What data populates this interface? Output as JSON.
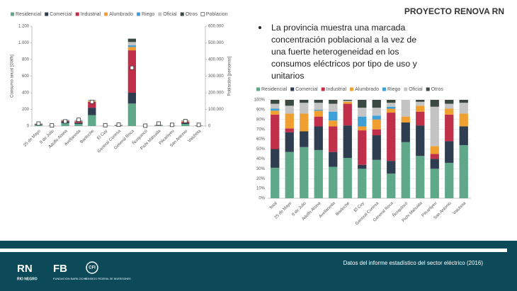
{
  "header": {
    "title": "PROYECTO RENOVA RN"
  },
  "bullet": "La provincia muestra una marcada concentración poblacional a la vez de una fuerte heterogeneidad en los consumos eléctricos por tipo de uso y unitarios",
  "footer": {
    "source": "Datos del informe estadístico del sector eléctrico (2016)",
    "logos": [
      "RN",
      "RIO NEGRO",
      "FB",
      "FUNDACION BARILOCHE",
      "CFI",
      "CONSEJO FEDERAL DE INVERSIONES"
    ]
  },
  "chart_data": [
    {
      "type": "bar",
      "stacked": true,
      "y_label": "Consumo anual [GWh]",
      "y2_label": "Población [personas]",
      "categories": [
        "25 de Mayo",
        "9 de Julio",
        "Adolfo Alsina",
        "Avellaneda",
        "Bariloche",
        "El Cuy",
        "General Conesa",
        "General Roca",
        "Ñorquincó",
        "Pichi Mahuida",
        "Pilcaniyeu",
        "San Antonio",
        "Valcheta"
      ],
      "series": [
        {
          "name": "Residencial",
          "color": "#5fa88a",
          "values": [
            15,
            3,
            35,
            25,
            130,
            2,
            6,
            270,
            1,
            6,
            2,
            25,
            4
          ]
        },
        {
          "name": "Comercial",
          "color": "#2e3d4f",
          "values": [
            7,
            1,
            20,
            15,
            90,
            1,
            4,
            130,
            0.5,
            3,
            1,
            12,
            2
          ]
        },
        {
          "name": "Industrial",
          "color": "#c0304a",
          "values": [
            3,
            0,
            8,
            15,
            70,
            1,
            2,
            510,
            0,
            3,
            0.5,
            15,
            0.5
          ]
        },
        {
          "name": "Alumbrado",
          "color": "#f0a030",
          "values": [
            2,
            0.5,
            4,
            4,
            8,
            0.5,
            1,
            40,
            0.2,
            1,
            0.5,
            4,
            0.5
          ]
        },
        {
          "name": "Riego",
          "color": "#3fa0d8",
          "values": [
            0,
            0,
            2,
            6,
            0,
            0,
            1,
            20,
            0,
            1,
            0,
            0,
            0
          ]
        },
        {
          "name": "Oficial",
          "color": "#c4c4c4",
          "values": [
            2,
            0.5,
            4,
            3,
            8,
            0.5,
            1,
            40,
            0.3,
            1,
            2,
            5,
            1
          ]
        },
        {
          "name": "Otros",
          "color": "#3a4a40",
          "values": [
            1,
            0,
            2,
            2,
            4,
            0,
            0,
            40,
            0,
            0,
            0,
            4,
            0
          ]
        },
        {
          "name": "Poblacion",
          "type": "scatter",
          "axis": "y2",
          "color": "#ffffff",
          "values": [
            15000,
            3500,
            28000,
            37500,
            145000,
            5000,
            8000,
            350000,
            2000,
            15000,
            7000,
            30000,
            7000
          ]
        }
      ],
      "ylim": [
        0,
        1200
      ],
      "yticks": [
        0,
        200,
        400,
        600,
        800,
        {
          "value": 1000,
          "label": "1.000"
        },
        {
          "value": 1200,
          "label": "1.200"
        }
      ],
      "y2lim": [
        0,
        600000
      ],
      "y2ticks": [
        0,
        {
          "value": 100000,
          "label": "100.000"
        },
        {
          "value": 200000,
          "label": "200.000"
        },
        {
          "value": 300000,
          "label": "300.000"
        },
        {
          "value": 400000,
          "label": "400.000"
        },
        {
          "value": 500000,
          "label": "500.000"
        },
        {
          "value": 600000,
          "label": "600.000"
        }
      ],
      "grid": false,
      "legend": "top"
    },
    {
      "type": "bar",
      "stacked": true,
      "categories": [
        "Total",
        "25 de Mayo",
        "9 de Julio",
        "Adolfo Alsina",
        "Avellaneda",
        "Bariloche",
        "El Cuy",
        "General Conesa",
        "General Roca",
        "Ñorquincó",
        "Pichi Mahuida",
        "Pilcaniyeu",
        "San Antonio",
        "Valcheta"
      ],
      "series": [
        {
          "name": "Residencial",
          "color": "#5fa88a",
          "values": [
            31,
            47,
            52,
            49,
            32,
            41,
            30,
            39,
            25,
            57,
            43,
            30,
            36,
            54
          ]
        },
        {
          "name": "Comercial",
          "color": "#2e3d4f",
          "values": [
            19,
            20,
            16,
            24,
            15,
            33,
            4,
            25,
            13,
            20,
            31,
            10,
            22,
            19
          ]
        },
        {
          "name": "Industrial",
          "color": "#c0304a",
          "values": [
            35,
            4,
            0,
            10,
            26,
            22,
            35,
            6,
            49,
            0,
            14,
            5,
            27,
            0
          ]
        },
        {
          "name": "Alumbrado",
          "color": "#f0a030",
          "values": [
            4,
            15,
            18,
            6,
            6,
            2,
            4,
            10,
            4,
            6,
            6,
            8,
            6,
            13
          ]
        },
        {
          "name": "Riego",
          "color": "#3fa0d8",
          "values": [
            2,
            0,
            0,
            1,
            9,
            0,
            10,
            4,
            2,
            0,
            0,
            0,
            0,
            0
          ]
        },
        {
          "name": "Oficial",
          "color": "#c4c4c4",
          "values": [
            5,
            8,
            11,
            7,
            8,
            1,
            9,
            8,
            4,
            17,
            4,
            40,
            5,
            11
          ]
        },
        {
          "name": "Otros",
          "color": "#3a4a40",
          "values": [
            4,
            6,
            3,
            3,
            4,
            1,
            8,
            8,
            3,
            0,
            2,
            7,
            4,
            3
          ]
        }
      ],
      "ylim": [
        0,
        100
      ],
      "yticks": [
        {
          "value": 0,
          "label": "0%"
        },
        {
          "value": 10,
          "label": "10%"
        },
        {
          "value": 20,
          "label": "20%"
        },
        {
          "value": 30,
          "label": "30%"
        },
        {
          "value": 40,
          "label": "40%"
        },
        {
          "value": 50,
          "label": "50%"
        },
        {
          "value": 60,
          "label": "60%"
        },
        {
          "value": 70,
          "label": "70%"
        },
        {
          "value": 80,
          "label": "80%"
        },
        {
          "value": 90,
          "label": "90%"
        },
        {
          "value": 100,
          "label": "100%"
        }
      ],
      "grid": true,
      "legend": "top"
    }
  ]
}
